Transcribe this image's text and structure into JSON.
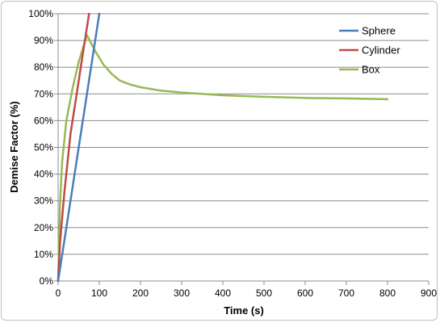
{
  "chart_data": {
    "type": "line",
    "title": "",
    "xlabel": "Time (s)",
    "ylabel": "Demise Factor (%)",
    "xlim": [
      0,
      900
    ],
    "ylim": [
      0,
      100
    ],
    "x_ticks": [
      "0",
      "100",
      "200",
      "300",
      "400",
      "500",
      "600",
      "700",
      "800",
      "900"
    ],
    "y_ticks": [
      "0%",
      "10%",
      "20%",
      "30%",
      "40%",
      "50%",
      "60%",
      "70%",
      "80%",
      "90%",
      "100%"
    ],
    "grid": "horizontal",
    "legend_position": "top-right",
    "series": [
      {
        "name": "Sphere",
        "color": "#4a7ebb",
        "points": [
          [
            0,
            0
          ],
          [
            50,
            50
          ],
          [
            100,
            100
          ]
        ]
      },
      {
        "name": "Cylinder",
        "color": "#be4b48",
        "points": [
          [
            0,
            0
          ],
          [
            5,
            15
          ],
          [
            15,
            33
          ],
          [
            30,
            55
          ],
          [
            45,
            70
          ],
          [
            60,
            85
          ],
          [
            75,
            100
          ]
        ]
      },
      {
        "name": "Box",
        "color": "#98b954",
        "points": [
          [
            0,
            0
          ],
          [
            5,
            30
          ],
          [
            10,
            45
          ],
          [
            20,
            60
          ],
          [
            35,
            72
          ],
          [
            50,
            82
          ],
          [
            70,
            92
          ],
          [
            90,
            86
          ],
          [
            110,
            81
          ],
          [
            130,
            77.5
          ],
          [
            150,
            75
          ],
          [
            175,
            73.5
          ],
          [
            200,
            72.5
          ],
          [
            250,
            71.2
          ],
          [
            300,
            70.5
          ],
          [
            350,
            70
          ],
          [
            400,
            69.5
          ],
          [
            500,
            68.9
          ],
          [
            600,
            68.5
          ],
          [
            700,
            68.3
          ],
          [
            800,
            68
          ]
        ]
      }
    ]
  }
}
